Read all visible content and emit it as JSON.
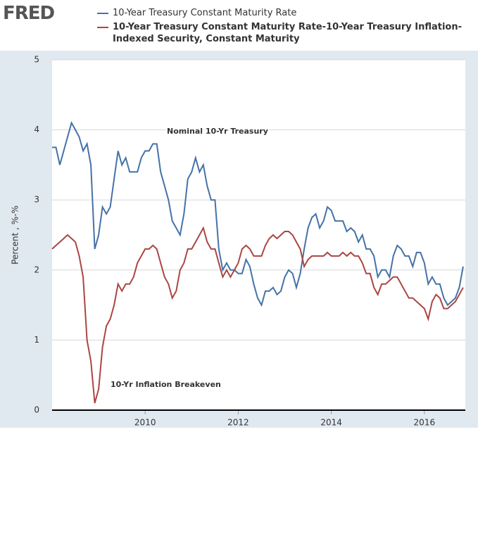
{
  "logo": "FRED",
  "chart_data": {
    "type": "line",
    "ylabel": "Percent , %-%",
    "xlim": [
      2008,
      2016.88
    ],
    "xticks": [
      2010,
      2012,
      2014,
      2016
    ],
    "ylim": [
      0,
      5
    ],
    "yticks": [
      0,
      1,
      2,
      3,
      4,
      5
    ],
    "grid": true,
    "annotations": [
      "Nominal 10-Yr Treasury",
      "10-Yr Inflation Breakeven"
    ],
    "x": [
      2008,
      2008.083,
      2008.167,
      2008.25,
      2008.333,
      2008.417,
      2008.5,
      2008.583,
      2008.667,
      2008.75,
      2008.833,
      2008.917,
      2009,
      2009.083,
      2009.167,
      2009.25,
      2009.333,
      2009.417,
      2009.5,
      2009.583,
      2009.667,
      2009.75,
      2009.833,
      2009.917,
      2010,
      2010.083,
      2010.167,
      2010.25,
      2010.333,
      2010.417,
      2010.5,
      2010.583,
      2010.667,
      2010.75,
      2010.833,
      2010.917,
      2011,
      2011.083,
      2011.167,
      2011.25,
      2011.333,
      2011.417,
      2011.5,
      2011.583,
      2011.667,
      2011.75,
      2011.833,
      2011.917,
      2012,
      2012.083,
      2012.167,
      2012.25,
      2012.333,
      2012.417,
      2012.5,
      2012.583,
      2012.667,
      2012.75,
      2012.833,
      2012.917,
      2013,
      2013.083,
      2013.167,
      2013.25,
      2013.333,
      2013.417,
      2013.5,
      2013.583,
      2013.667,
      2013.75,
      2013.833,
      2013.917,
      2014,
      2014.083,
      2014.167,
      2014.25,
      2014.333,
      2014.417,
      2014.5,
      2014.583,
      2014.667,
      2014.75,
      2014.833,
      2014.917,
      2015,
      2015.083,
      2015.167,
      2015.25,
      2015.333,
      2015.417,
      2015.5,
      2015.583,
      2015.667,
      2015.75,
      2015.833,
      2015.917,
      2016,
      2016.083,
      2016.167,
      2016.25,
      2016.333,
      2016.417,
      2016.5,
      2016.583,
      2016.667,
      2016.75,
      2016.833
    ],
    "series": [
      {
        "name": "10-Year Treasury Constant Maturity Rate",
        "color": "#4572a7",
        "values": [
          3.75,
          3.75,
          3.5,
          3.7,
          3.9,
          4.1,
          4.0,
          3.9,
          3.7,
          3.8,
          3.5,
          2.3,
          2.5,
          2.9,
          2.8,
          2.9,
          3.3,
          3.7,
          3.5,
          3.6,
          3.4,
          3.4,
          3.4,
          3.6,
          3.7,
          3.7,
          3.8,
          3.8,
          3.4,
          3.2,
          3.0,
          2.7,
          2.6,
          2.5,
          2.8,
          3.3,
          3.4,
          3.6,
          3.4,
          3.5,
          3.2,
          3.0,
          3.0,
          2.3,
          2.0,
          2.1,
          2.0,
          2.0,
          1.95,
          1.95,
          2.15,
          2.05,
          1.8,
          1.6,
          1.5,
          1.7,
          1.7,
          1.75,
          1.65,
          1.7,
          1.9,
          2.0,
          1.95,
          1.75,
          1.95,
          2.3,
          2.6,
          2.75,
          2.8,
          2.6,
          2.7,
          2.9,
          2.85,
          2.7,
          2.7,
          2.7,
          2.55,
          2.6,
          2.55,
          2.4,
          2.5,
          2.3,
          2.3,
          2.2,
          1.9,
          2.0,
          2.0,
          1.9,
          2.2,
          2.35,
          2.3,
          2.2,
          2.2,
          2.05,
          2.25,
          2.25,
          2.1,
          1.8,
          1.9,
          1.8,
          1.8,
          1.6,
          1.5,
          1.55,
          1.6,
          1.75,
          2.05
        ]
      },
      {
        "name": "10-Year Treasury Constant Maturity Rate-10-Year Treasury Inflation-Indexed Security, Constant Maturity",
        "color": "#aa4643",
        "values": [
          2.3,
          2.35,
          2.4,
          2.45,
          2.5,
          2.45,
          2.4,
          2.2,
          1.9,
          1.0,
          0.7,
          0.1,
          0.3,
          0.9,
          1.2,
          1.3,
          1.5,
          1.8,
          1.7,
          1.8,
          1.8,
          1.9,
          2.1,
          2.2,
          2.3,
          2.3,
          2.35,
          2.3,
          2.1,
          1.9,
          1.8,
          1.6,
          1.7,
          2.0,
          2.1,
          2.3,
          2.3,
          2.4,
          2.5,
          2.6,
          2.4,
          2.3,
          2.3,
          2.1,
          1.9,
          2.0,
          1.9,
          2.0,
          2.1,
          2.3,
          2.35,
          2.3,
          2.2,
          2.2,
          2.2,
          2.35,
          2.45,
          2.5,
          2.45,
          2.5,
          2.55,
          2.55,
          2.5,
          2.4,
          2.3,
          2.05,
          2.15,
          2.2,
          2.2,
          2.2,
          2.2,
          2.25,
          2.2,
          2.2,
          2.2,
          2.25,
          2.2,
          2.25,
          2.2,
          2.2,
          2.1,
          1.95,
          1.95,
          1.75,
          1.65,
          1.8,
          1.8,
          1.85,
          1.9,
          1.9,
          1.8,
          1.7,
          1.6,
          1.6,
          1.55,
          1.5,
          1.45,
          1.3,
          1.55,
          1.65,
          1.6,
          1.45,
          1.45,
          1.5,
          1.55,
          1.65,
          1.75
        ]
      }
    ]
  }
}
